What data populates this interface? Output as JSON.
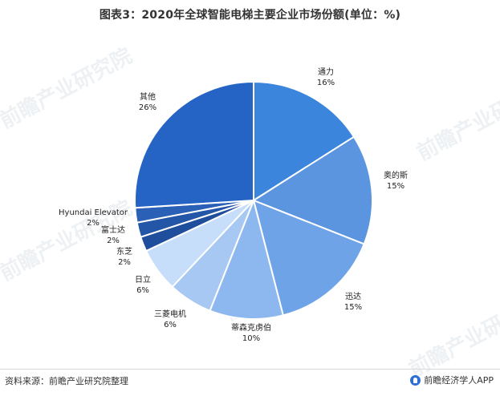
{
  "title": "图表3：2020年全球智能电梯主要企业市场份额(单位：%)",
  "footer": {
    "source": "资料来源：前瞻产业研究院整理",
    "brand": "前瞻经济学人APP"
  },
  "watermark": "前瞻产业研究院",
  "chart_data": {
    "type": "pie",
    "title": "图表3：2020年全球智能电梯主要企业市场份额(单位：%)",
    "slices": [
      {
        "name": "通力",
        "value": 16,
        "label": "16%",
        "color": "#3b86dc"
      },
      {
        "name": "奥的斯",
        "value": 15,
        "label": "15%",
        "color": "#5b95e0"
      },
      {
        "name": "迅达",
        "value": 15,
        "label": "15%",
        "color": "#6ea4e7"
      },
      {
        "name": "蒂森克虏伯",
        "value": 10,
        "label": "10%",
        "color": "#8db8ef"
      },
      {
        "name": "三菱电机",
        "value": 6,
        "label": "6%",
        "color": "#a6c8f2"
      },
      {
        "name": "日立",
        "value": 6,
        "label": "6%",
        "color": "#c7defa"
      },
      {
        "name": "东芝",
        "value": 2,
        "label": "2%",
        "color": "#1f4f9c"
      },
      {
        "name": "富士达",
        "value": 2,
        "label": "2%",
        "color": "#2456a8"
      },
      {
        "name": "Hyundai Elevator",
        "value": 2,
        "label": "2%",
        "color": "#2a60b5"
      },
      {
        "name": "其他",
        "value": 26,
        "label": "26%",
        "color": "#2563c4"
      }
    ]
  }
}
